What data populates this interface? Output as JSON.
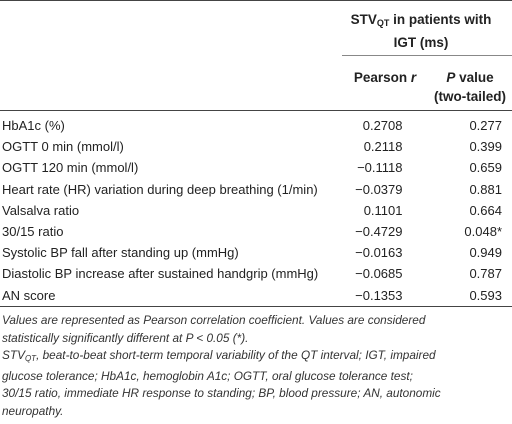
{
  "header": {
    "group_title_prefix": "STV",
    "group_title_sub": "QT",
    "group_title_rest": " in patients with",
    "group_title_line2": "IGT (ms)",
    "col_r_label_1": "Pearson ",
    "col_r_label_2": "r",
    "col_p_label_1": "P",
    "col_p_label_2": " value",
    "col_p_label_3": "(two-tailed)"
  },
  "rows": [
    {
      "label": "HbA1c (%)",
      "r": "0.2708",
      "p": "0.277"
    },
    {
      "label": "OGTT 0 min (mmol/l)",
      "r": "0.2118",
      "p": "0.399"
    },
    {
      "label": "OGTT 120 min (mmol/l)",
      "r": "−0.1118",
      "p": "0.659"
    },
    {
      "label": "Heart rate (HR) variation during deep breathing (1/min)",
      "r": "−0.0379",
      "p": "0.881"
    },
    {
      "label": "Valsalva ratio",
      "r": "0.1101",
      "p": "0.664"
    },
    {
      "label": "30/15 ratio",
      "r": "−0.4729",
      "p": "0.048*"
    },
    {
      "label": "Systolic BP fall after standing up (mmHg)",
      "r": "−0.0163",
      "p": "0.949"
    },
    {
      "label": "Diastolic BP increase after sustained handgrip (mmHg)",
      "r": "−0.0685",
      "p": "0.787"
    },
    {
      "label": "AN score",
      "r": "−0.1353",
      "p": "0.593"
    }
  ],
  "notes": {
    "line1": "Values are represented as Pearson correlation coefficient. Values are considered",
    "line2": "statistically significantly different at P < 0.05 (*).",
    "abbr_prefix": "STV",
    "abbr_sub": "QT",
    "abbr_line1_rest": ", beat-to-beat short-term temporal variability of the QT interval; IGT, impaired",
    "abbr_line2": "glucose tolerance; HbA1c, hemoglobin A1c; OGTT, oral glucose tolerance test;",
    "abbr_line3": "30/15 ratio, immediate HR response to standing; BP, blood pressure; AN, autonomic",
    "abbr_line4": "neuropathy."
  }
}
